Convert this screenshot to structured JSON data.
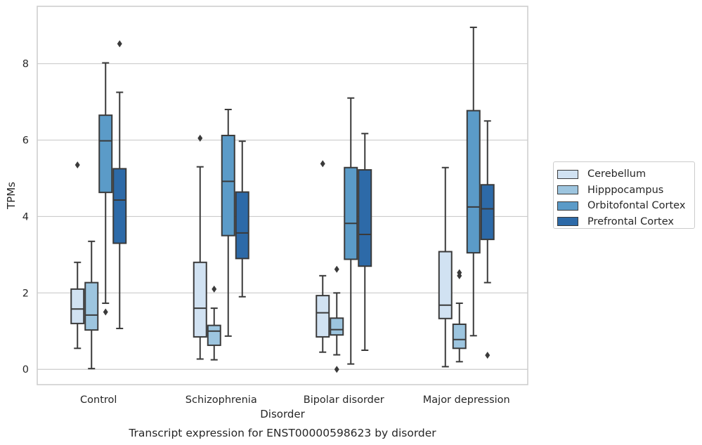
{
  "chart_data": {
    "type": "boxplot",
    "title": "Transcript expression for ENST00000598623 by disorder",
    "xlabel": "Disorder",
    "ylabel": "TPMs",
    "ylim": [
      -0.4,
      9.5
    ],
    "yticks": [
      0,
      2,
      4,
      6,
      8
    ],
    "grid": "horizontal",
    "legend_position": "right",
    "categories": [
      "Control",
      "Schizophrenia",
      "Bipolar disorder",
      "Major depression"
    ],
    "series": [
      {
        "name": "Cerebellum",
        "color": "#d1e2f2",
        "boxes": [
          {
            "whisker_low": 0.55,
            "q1": 1.2,
            "median": 1.58,
            "q3": 2.1,
            "whisker_high": 2.8,
            "outliers": [
              5.35
            ]
          },
          {
            "whisker_low": 0.27,
            "q1": 0.85,
            "median": 1.6,
            "q3": 2.8,
            "whisker_high": 5.3,
            "outliers": [
              6.05
            ]
          },
          {
            "whisker_low": 0.45,
            "q1": 0.85,
            "median": 1.48,
            "q3": 1.93,
            "whisker_high": 2.45,
            "outliers": [
              5.38
            ]
          },
          {
            "whisker_low": 0.07,
            "q1": 1.33,
            "median": 1.68,
            "q3": 3.08,
            "whisker_high": 5.28,
            "outliers": []
          }
        ]
      },
      {
        "name": "Hipppocampus",
        "color": "#9dc5df",
        "boxes": [
          {
            "whisker_low": 0.02,
            "q1": 1.03,
            "median": 1.42,
            "q3": 2.27,
            "whisker_high": 3.35,
            "outliers": []
          },
          {
            "whisker_low": 0.25,
            "q1": 0.63,
            "median": 1.0,
            "q3": 1.15,
            "whisker_high": 1.6,
            "outliers": [
              2.1
            ]
          },
          {
            "whisker_low": 0.38,
            "q1": 0.9,
            "median": 1.04,
            "q3": 1.34,
            "whisker_high": 2.0,
            "outliers": [
              2.62,
              0.0
            ]
          },
          {
            "whisker_low": 0.2,
            "q1": 0.55,
            "median": 0.78,
            "q3": 1.18,
            "whisker_high": 1.73,
            "outliers": [
              2.53,
              2.45
            ]
          }
        ]
      },
      {
        "name": "Orbitofontal Cortex",
        "color": "#5b9bc8",
        "boxes": [
          {
            "whisker_low": 1.73,
            "q1": 4.63,
            "median": 5.98,
            "q3": 6.65,
            "whisker_high": 8.02,
            "outliers": [
              1.5
            ]
          },
          {
            "whisker_low": 0.87,
            "q1": 3.5,
            "median": 4.92,
            "q3": 6.12,
            "whisker_high": 6.8,
            "outliers": []
          },
          {
            "whisker_low": 0.14,
            "q1": 2.88,
            "median": 3.82,
            "q3": 5.28,
            "whisker_high": 7.1,
            "outliers": []
          },
          {
            "whisker_low": 0.88,
            "q1": 3.05,
            "median": 4.25,
            "q3": 6.77,
            "whisker_high": 8.95,
            "outliers": []
          }
        ]
      },
      {
        "name": "Prefrontal Cortex",
        "color": "#2d6aa8",
        "boxes": [
          {
            "whisker_low": 1.07,
            "q1": 3.3,
            "median": 4.43,
            "q3": 5.25,
            "whisker_high": 7.25,
            "outliers": [
              8.52
            ]
          },
          {
            "whisker_low": 1.9,
            "q1": 2.9,
            "median": 3.57,
            "q3": 4.64,
            "whisker_high": 5.97,
            "outliers": []
          },
          {
            "whisker_low": 0.5,
            "q1": 2.7,
            "median": 3.53,
            "q3": 5.22,
            "whisker_high": 6.17,
            "outliers": []
          },
          {
            "whisker_low": 2.27,
            "q1": 3.4,
            "median": 4.2,
            "q3": 4.83,
            "whisker_high": 6.5,
            "outliers": [
              0.37
            ]
          }
        ]
      }
    ]
  }
}
